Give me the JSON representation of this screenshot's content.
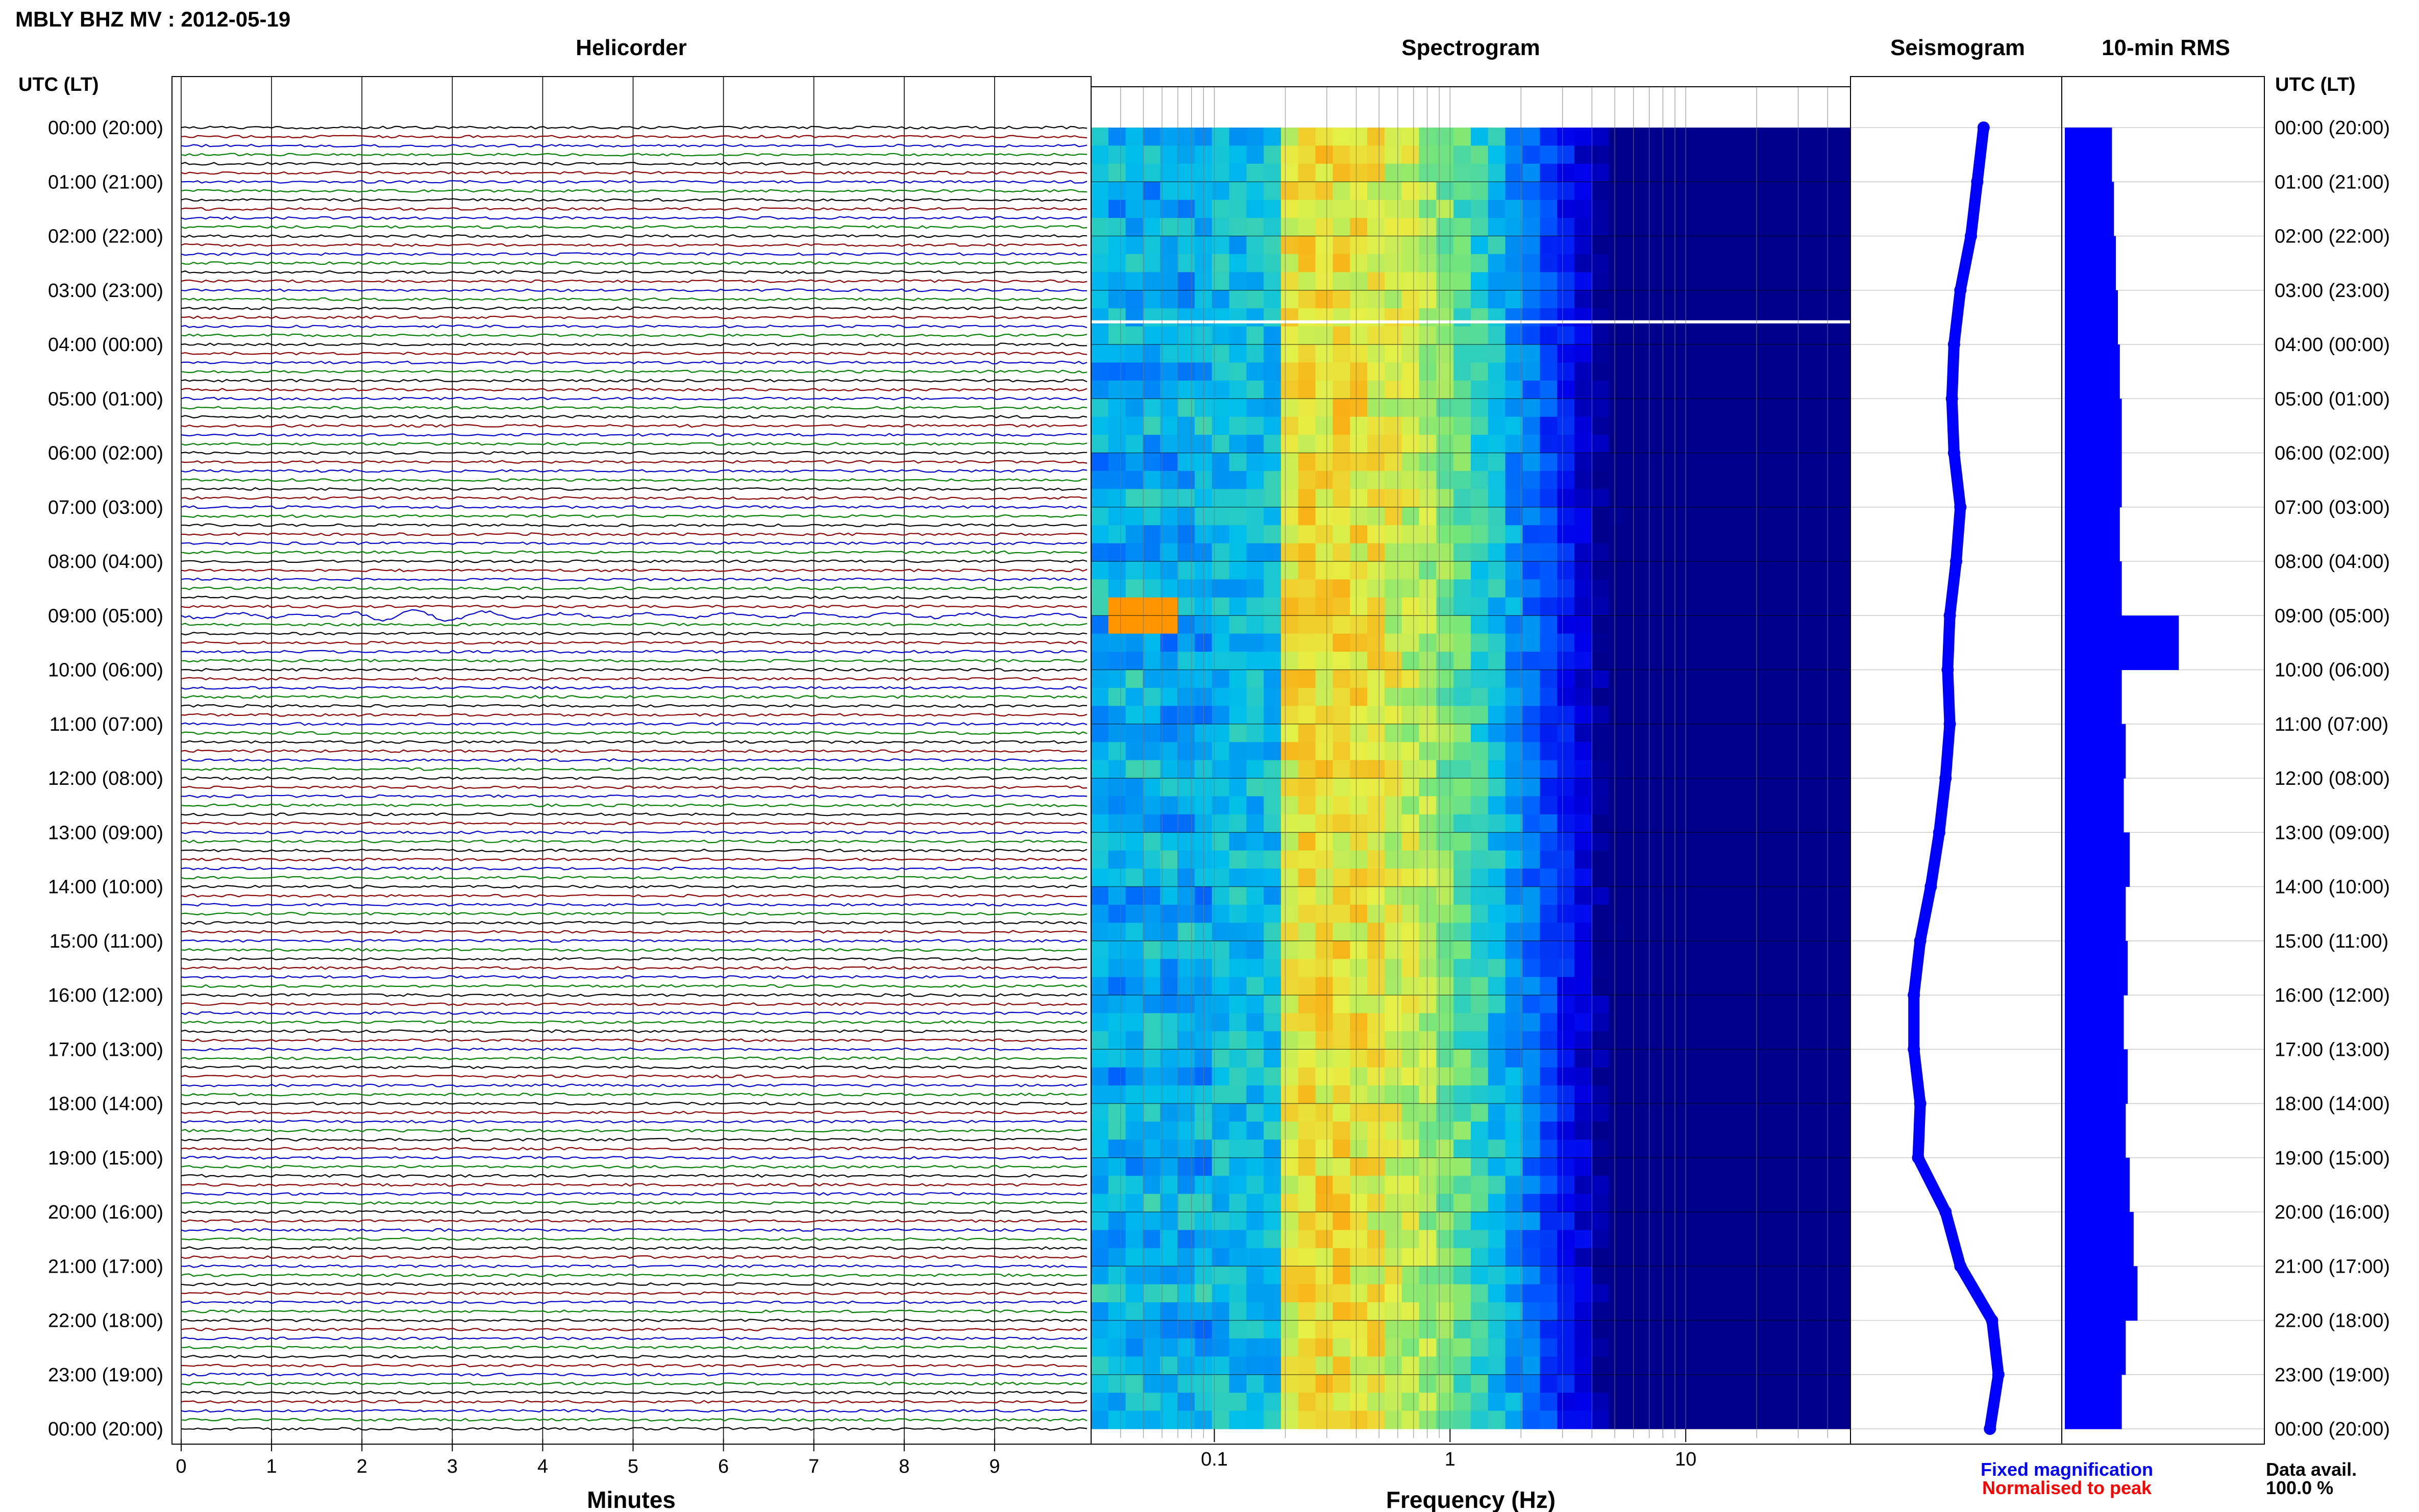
{
  "header": {
    "station_title": "MBLY BHZ MV : 2012-05-19",
    "utc_lt_left": "UTC (LT)",
    "utc_lt_right": "UTC (LT)"
  },
  "panels": {
    "helicorder_title": "Helicorder",
    "spectrogram_title": "Spectrogram",
    "seismogram_title": "Seismogram",
    "rms_title": "10-min RMS"
  },
  "footer": {
    "minutes_label": "Minutes",
    "frequency_label": "Frequency (Hz)",
    "fixed_magnification": "Fixed magnification",
    "normalised_to_peak": "Normalised to peak",
    "data_avail_label": "Data avail.",
    "data_avail_value": "100.0 %"
  },
  "colors": {
    "fixed_magnification": "#0000ff",
    "normalised_to_peak": "#ff0000",
    "trace_cycle": [
      "#000000",
      "#8b0000",
      "#0000cd",
      "#008000"
    ],
    "seismogram": "#0000ff",
    "rms_bars": "#0000ff"
  },
  "chart_data": [
    {
      "type": "line",
      "title": "Helicorder",
      "xlabel": "Minutes",
      "x_ticks": [
        "0",
        "1",
        "2",
        "3",
        "4",
        "5",
        "6",
        "7",
        "8",
        "9"
      ],
      "xlim": [
        0,
        10
      ],
      "y_ticks_utc_lt": [
        "00:00 (20:00)",
        "01:00 (21:00)",
        "02:00 (22:00)",
        "03:00 (23:00)",
        "04:00 (00:00)",
        "05:00 (01:00)",
        "06:00 (02:00)",
        "07:00 (03:00)",
        "08:00 (04:00)",
        "09:00 (05:00)",
        "10:00 (06:00)",
        "11:00 (07:00)",
        "12:00 (08:00)",
        "13:00 (09:00)",
        "14:00 (10:00)",
        "15:00 (11:00)",
        "16:00 (12:00)",
        "17:00 (13:00)",
        "18:00 (14:00)",
        "19:00 (15:00)",
        "20:00 (16:00)",
        "21:00 (17:00)",
        "22:00 (18:00)",
        "23:00 (19:00)",
        "00:00 (20:00)"
      ],
      "traces_per_hour": 6,
      "notable_event_utc": "09:00",
      "grid": true
    },
    {
      "type": "heatmap",
      "title": "Spectrogram",
      "xlabel": "Frequency (Hz)",
      "x_scale": "log",
      "x_tick_labels": [
        "0.1",
        "1",
        "10"
      ],
      "xlim_hz": [
        0.03,
        50
      ],
      "peak_event": {
        "time_utc": "09:00",
        "frequency_hz": 0.05
      },
      "data_gap_utc": "03:35"
    },
    {
      "type": "line",
      "title": "Seismogram",
      "time_utc": [
        0,
        1,
        2,
        3,
        4,
        5,
        6,
        7,
        8,
        9,
        10,
        11,
        12,
        13,
        14,
        15,
        16,
        17,
        18,
        19,
        20,
        21,
        22,
        23,
        24
      ],
      "relative_offset": [
        0.63,
        0.6,
        0.57,
        0.52,
        0.49,
        0.48,
        0.49,
        0.52,
        0.5,
        0.47,
        0.46,
        0.47,
        0.45,
        0.42,
        0.38,
        0.33,
        0.3,
        0.3,
        0.33,
        0.32,
        0.45,
        0.52,
        0.67,
        0.7,
        0.66
      ]
    },
    {
      "type": "bar",
      "title": "10-min RMS",
      "time_utc_hours": [
        0,
        1,
        2,
        3,
        4,
        5,
        6,
        7,
        8,
        9,
        10,
        11,
        12,
        13,
        14,
        15,
        16,
        17,
        18,
        19,
        20,
        21,
        22,
        23
      ],
      "relative_rms": [
        0.24,
        0.25,
        0.26,
        0.27,
        0.28,
        0.29,
        0.29,
        0.28,
        0.29,
        0.58,
        0.29,
        0.31,
        0.3,
        0.33,
        0.31,
        0.32,
        0.3,
        0.32,
        0.31,
        0.33,
        0.35,
        0.37,
        0.31,
        0.29
      ],
      "peak_utc": "09:00"
    }
  ]
}
